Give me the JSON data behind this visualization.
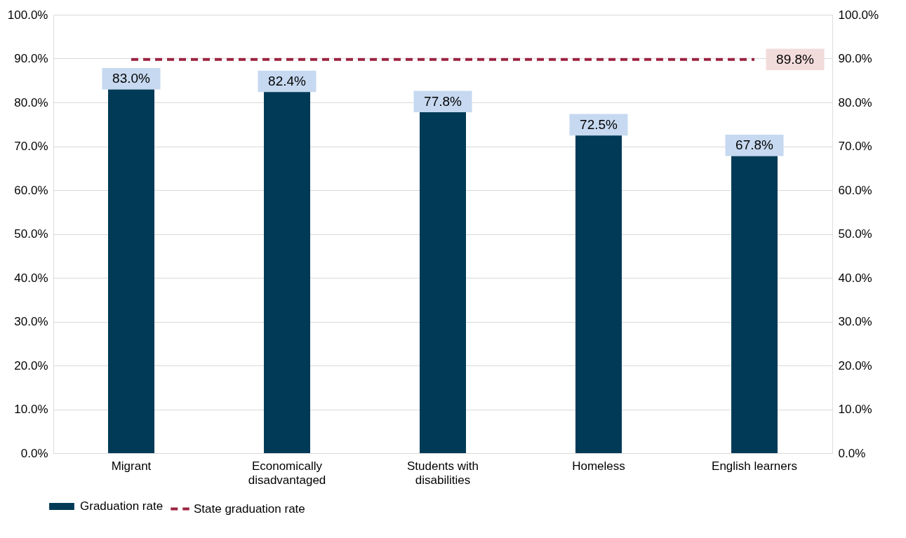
{
  "chart_data": {
    "type": "bar",
    "categories": [
      "Migrant",
      "Economically disadvantaged",
      "Students with disabilities",
      "Homeless",
      "English learners"
    ],
    "series": [
      {
        "name": "Graduation rate",
        "color": "#003a57",
        "values": [
          83.0,
          82.4,
          77.8,
          72.5,
          67.8
        ],
        "value_labels": [
          "83.0%",
          "82.4%",
          "77.8%",
          "72.5%",
          "67.8%"
        ]
      },
      {
        "name": "State graduation rate",
        "type": "line",
        "axis": "y2",
        "color": "#9b2240",
        "line_style": "dashed",
        "values": [
          89.8,
          89.8,
          89.8,
          89.8,
          89.8
        ],
        "value_labels": [
          null,
          null,
          null,
          null,
          "89.8%"
        ]
      }
    ],
    "ylim": [
      0,
      100
    ],
    "yticks": [
      {
        "value": 0,
        "label": "0.0%"
      },
      {
        "value": 10,
        "label": "10.0%"
      },
      {
        "value": 20,
        "label": "20.0%"
      },
      {
        "value": 30,
        "label": "30.0%"
      },
      {
        "value": 40,
        "label": "40.0%"
      },
      {
        "value": 50,
        "label": "50.0%"
      },
      {
        "value": 60,
        "label": "60.0%"
      },
      {
        "value": 70,
        "label": "70.0%"
      },
      {
        "value": 80,
        "label": "80.0%"
      },
      {
        "value": 90,
        "label": "90.0%"
      },
      {
        "value": 100,
        "label": "100.0%"
      }
    ],
    "y2lim": [
      0,
      100
    ],
    "y2ticks": [
      {
        "value": 0,
        "label": "0.0%"
      },
      {
        "value": 10,
        "label": "10.0%"
      },
      {
        "value": 20,
        "label": "20.0%"
      },
      {
        "value": 30,
        "label": "30.0%"
      },
      {
        "value": 40,
        "label": "40.0%"
      },
      {
        "value": 50,
        "label": "50.0%"
      },
      {
        "value": 60,
        "label": "60.0%"
      },
      {
        "value": 70,
        "label": "70.0%"
      },
      {
        "value": 80,
        "label": "80.0%"
      },
      {
        "value": 90,
        "label": "90.0%"
      },
      {
        "value": 100,
        "label": "100.0%"
      }
    ],
    "grid": "y",
    "legend": "bottom"
  }
}
